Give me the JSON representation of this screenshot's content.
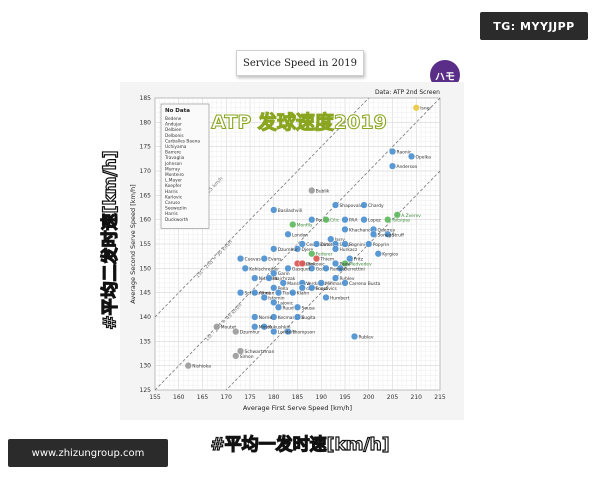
{
  "tg_badge": "TG: MYYJJPP",
  "title_box": "Service Speed in 2019",
  "brand_badge": "ハモ",
  "overlay_title": "ATP 发球速度2019",
  "big_ylabel": "#平均二发时速[km/h]",
  "big_xlabel": "#平均一发时速[km/h]",
  "footer_banner": "www.zhizungroup.com",
  "colors": {
    "point_blue": "#4a8fd0",
    "point_green": "#5cb85c",
    "point_yellow": "#e8c840",
    "point_red": "#d9534f",
    "point_grey": "#9a9a9a",
    "grid": "#d8d8d8",
    "frame_bg": "#f4f4f4",
    "chart_bg": "#ffffff",
    "title_green": "#8aa620"
  },
  "chart_data": {
    "type": "scatter",
    "source_label": "Data: ATP 2nd Screen",
    "xlabel": "Average First Serve Speed [km/h]",
    "ylabel": "Average Second Serve Speed [km/h]",
    "xlim": [
      155,
      215
    ],
    "ylim": [
      125,
      185
    ],
    "x_ticks": [
      155,
      160,
      165,
      170,
      175,
      180,
      185,
      190,
      195,
      200,
      205,
      210,
      215
    ],
    "y_ticks": [
      125,
      130,
      135,
      140,
      145,
      150,
      155,
      160,
      165,
      170,
      175,
      180,
      185
    ],
    "grid": true,
    "reference_lines": [
      {
        "label": "1st - 2nd = 15 km/h",
        "offset": 15
      },
      {
        "label": "1st - 2nd = 30 km/h",
        "offset": 30
      },
      {
        "label": "1st - 2nd = 45 km/h",
        "offset": 45
      }
    ],
    "no_data_box": {
      "title": "No Data",
      "names": [
        "Bedene",
        "Andujar",
        "Delbien",
        "Delbonis",
        "Carballes Baena",
        "Uchiyama",
        "Barrere",
        "Travaglia",
        "Johnson",
        "Murray",
        "Monteiro",
        "L.Mayer",
        "Koepfer",
        "Harris",
        "Karlovic",
        "Caruso",
        "Seeweziin",
        "Harris",
        "Duckworth"
      ],
      "legend_placement": "top-left"
    },
    "points": [
      {
        "name": "Isner",
        "x": 210,
        "y": 183,
        "color": "yellow"
      },
      {
        "name": "Raonic",
        "x": 205,
        "y": 174,
        "color": "blue"
      },
      {
        "name": "Opelka",
        "x": 209,
        "y": 173,
        "color": "blue"
      },
      {
        "name": "Anderson",
        "x": 205,
        "y": 171,
        "color": "blue"
      },
      {
        "name": "Bublik",
        "x": 188,
        "y": 166,
        "color": "grey"
      },
      {
        "name": "Shapovalov",
        "x": 193,
        "y": 163,
        "color": "blue"
      },
      {
        "name": "Chardy",
        "x": 199,
        "y": 163,
        "color": "blue"
      },
      {
        "name": "Basilashvili",
        "x": 180,
        "y": 162,
        "color": "blue"
      },
      {
        "name": "Pouille",
        "x": 188,
        "y": 160,
        "color": "blue"
      },
      {
        "name": "Cilic",
        "x": 191,
        "y": 160,
        "color": "green"
      },
      {
        "name": "PAA",
        "x": 195,
        "y": 160,
        "color": "blue"
      },
      {
        "name": "Lopez",
        "x": 199,
        "y": 160,
        "color": "blue"
      },
      {
        "name": "A.Zverev",
        "x": 206,
        "y": 161,
        "color": "green"
      },
      {
        "name": "Tsitsipas",
        "x": 204,
        "y": 160,
        "color": "green"
      },
      {
        "name": "Monfils",
        "x": 184,
        "y": 159,
        "color": "green"
      },
      {
        "name": "Khachanov",
        "x": 195,
        "y": 158,
        "color": "blue"
      },
      {
        "name": "Querrey",
        "x": 201,
        "y": 158,
        "color": "blue"
      },
      {
        "name": "Struff",
        "x": 204,
        "y": 157,
        "color": "blue"
      },
      {
        "name": "Sonego",
        "x": 201,
        "y": 157,
        "color": "blue"
      },
      {
        "name": "London",
        "x": 183,
        "y": 157,
        "color": "blue"
      },
      {
        "name": "Jarry",
        "x": 192,
        "y": 156,
        "color": "blue"
      },
      {
        "name": "Cecchinato",
        "x": 186,
        "y": 155,
        "color": "blue"
      },
      {
        "name": "Dimitrov",
        "x": 189,
        "y": 155,
        "color": "blue"
      },
      {
        "name": "Seppi",
        "x": 193,
        "y": 155,
        "color": "blue"
      },
      {
        "name": "Fognini",
        "x": 195,
        "y": 155,
        "color": "blue"
      },
      {
        "name": "Popyrin",
        "x": 200,
        "y": 155,
        "color": "blue"
      },
      {
        "name": "Djere",
        "x": 185,
        "y": 154,
        "color": "blue"
      },
      {
        "name": "Dzumhur",
        "x": 180,
        "y": 154,
        "color": "blue"
      },
      {
        "name": "Federer",
        "x": 188,
        "y": 153,
        "color": "green"
      },
      {
        "name": "Hurkacz",
        "x": 193,
        "y": 154,
        "color": "blue"
      },
      {
        "name": "Kyrgios",
        "x": 202,
        "y": 153,
        "color": "blue"
      },
      {
        "name": "Evans",
        "x": 178,
        "y": 152,
        "color": "blue"
      },
      {
        "name": "Cuevas",
        "x": 173,
        "y": 152,
        "color": "blue"
      },
      {
        "name": "Kohlschreiber",
        "x": 174,
        "y": 150,
        "color": "blue"
      },
      {
        "name": "Thiem",
        "x": 189,
        "y": 152,
        "color": "red"
      },
      {
        "name": "Fritz",
        "x": 196,
        "y": 152,
        "color": "blue"
      },
      {
        "name": "Medvedev",
        "x": 195,
        "y": 151,
        "color": "green"
      },
      {
        "name": "Nadal",
        "x": 185,
        "y": 151,
        "color": "red"
      },
      {
        "name": "Djokovic",
        "x": 186,
        "y": 151,
        "color": "red"
      },
      {
        "name": "Paire",
        "x": 193,
        "y": 151,
        "color": "blue"
      },
      {
        "name": "Berrettini",
        "x": 194,
        "y": 150,
        "color": "blue"
      },
      {
        "name": "Goffin",
        "x": 188,
        "y": 150,
        "color": "blue"
      },
      {
        "name": "Ramos",
        "x": 191,
        "y": 150,
        "color": "blue"
      },
      {
        "name": "Gasquet",
        "x": 183,
        "y": 150,
        "color": "blue"
      },
      {
        "name": "Garin",
        "x": 180,
        "y": 149,
        "color": "blue"
      },
      {
        "name": "Nishioka",
        "x": 176,
        "y": 148,
        "color": "blue"
      },
      {
        "name": "Rublev",
        "x": 193,
        "y": 148,
        "color": "blue"
      },
      {
        "name": "Majchrzak",
        "x": 179,
        "y": 148,
        "color": "blue"
      },
      {
        "name": "Mannarino",
        "x": 182,
        "y": 147,
        "color": "blue"
      },
      {
        "name": "Verdasco",
        "x": 186,
        "y": 147,
        "color": "blue"
      },
      {
        "name": "Millman",
        "x": 190,
        "y": 147,
        "color": "blue"
      },
      {
        "name": "Carreno Busta",
        "x": 195,
        "y": 147,
        "color": "blue"
      },
      {
        "name": "Pella",
        "x": 180,
        "y": 146,
        "color": "blue"
      },
      {
        "name": "de Minaur",
        "x": 186,
        "y": 146,
        "color": "blue"
      },
      {
        "name": "Fucsovics",
        "x": 188,
        "y": 146,
        "color": "blue"
      },
      {
        "name": "Schwartzman",
        "x": 173,
        "y": 145,
        "color": "blue"
      },
      {
        "name": "Albot",
        "x": 176,
        "y": 145,
        "color": "blue"
      },
      {
        "name": "Tiafoe",
        "x": 181,
        "y": 145,
        "color": "blue"
      },
      {
        "name": "Klahn",
        "x": 184,
        "y": 145,
        "color": "blue"
      },
      {
        "name": "Humbert",
        "x": 191,
        "y": 144,
        "color": "blue"
      },
      {
        "name": "Istomin",
        "x": 178,
        "y": 144,
        "color": "blue"
      },
      {
        "name": "Lajovic",
        "x": 180,
        "y": 143,
        "color": "blue"
      },
      {
        "name": "Ruud",
        "x": 181,
        "y": 142,
        "color": "blue"
      },
      {
        "name": "Sousa",
        "x": 185,
        "y": 142,
        "color": "blue"
      },
      {
        "name": "Kecmanovic",
        "x": 180,
        "y": 140,
        "color": "blue"
      },
      {
        "name": "Sugita",
        "x": 185,
        "y": 140,
        "color": "blue"
      },
      {
        "name": "Norrie",
        "x": 176,
        "y": 140,
        "color": "blue"
      },
      {
        "name": "Kukushkin",
        "x": 178,
        "y": 138,
        "color": "blue"
      },
      {
        "name": "Thompson",
        "x": 183,
        "y": 137,
        "color": "blue"
      },
      {
        "name": "Mmoh",
        "x": 176,
        "y": 138,
        "color": "blue"
      },
      {
        "name": "Londero",
        "x": 180,
        "y": 137,
        "color": "blue"
      },
      {
        "name": "Moutet",
        "x": 168,
        "y": 138,
        "color": "grey"
      },
      {
        "name": "Dzumhur",
        "x": 172,
        "y": 137,
        "color": "grey"
      },
      {
        "name": "Simon",
        "x": 172,
        "y": 132,
        "color": "grey"
      },
      {
        "name": "Schwartzman",
        "x": 173,
        "y": 133,
        "color": "grey"
      },
      {
        "name": "Nishioka",
        "x": 162,
        "y": 130,
        "color": "grey"
      },
      {
        "name": "Rublev",
        "x": 197,
        "y": 136,
        "color": "blue"
      }
    ]
  }
}
